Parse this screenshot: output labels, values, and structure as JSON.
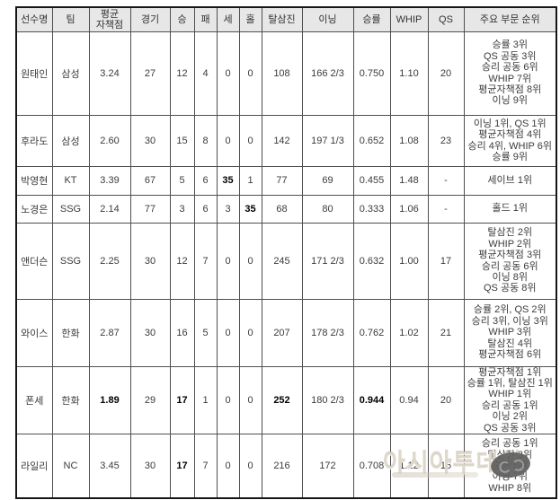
{
  "colors": {
    "header_bg": "#e7e7e7",
    "inner_border": "#4f4f4f",
    "outer_border": "#161616",
    "body_text": "#3b3b3b",
    "bold_text": "#000000",
    "watermark_text": "#d5cdbe",
    "watermark_logo": "#5e5e5e"
  },
  "table": {
    "columns": [
      {
        "key": "name",
        "label": "선수명"
      },
      {
        "key": "team",
        "label": "팀"
      },
      {
        "key": "era",
        "label": "평균\n자책점"
      },
      {
        "key": "games",
        "label": "경기"
      },
      {
        "key": "wins",
        "label": "승"
      },
      {
        "key": "losses",
        "label": "패"
      },
      {
        "key": "saves",
        "label": "세"
      },
      {
        "key": "holds",
        "label": "홀"
      },
      {
        "key": "strikeouts",
        "label": "탈삼진"
      },
      {
        "key": "innings",
        "label": "이닝"
      },
      {
        "key": "win_rate",
        "label": "승률"
      },
      {
        "key": "whip",
        "label": "WHIP"
      },
      {
        "key": "qs",
        "label": "QS"
      },
      {
        "key": "rankings",
        "label": "주요 부문 순위"
      }
    ],
    "rows": [
      {
        "name": "원태인",
        "team": "삼성",
        "era": "3.24",
        "games": "27",
        "wins": "12",
        "losses": "4",
        "saves": "0",
        "holds": "0",
        "strikeouts": "108",
        "innings": "166 2/3",
        "win_rate": "0.750",
        "whip": "1.10",
        "qs": "20",
        "bold": [],
        "rankings": [
          "승률 3위",
          "QS 공동 3위",
          "승리 공동 6위",
          "WHIP 7위",
          "평균자책점 8위",
          "이닝 9위"
        ]
      },
      {
        "name": "후라도",
        "team": "삼성",
        "era": "2.60",
        "games": "30",
        "wins": "15",
        "losses": "8",
        "saves": "0",
        "holds": "0",
        "strikeouts": "142",
        "innings": "197 1/3",
        "win_rate": "0.652",
        "whip": "1.08",
        "qs": "23",
        "bold": [],
        "rankings": [
          "이닝 1위, QS 1위",
          "평균자책점 4위",
          "승리 4위, WHIP 6위",
          "승률 9위"
        ]
      },
      {
        "name": "박영현",
        "team": "KT",
        "era": "3.39",
        "games": "67",
        "wins": "5",
        "losses": "6",
        "saves": "35",
        "holds": "1",
        "strikeouts": "77",
        "innings": "69",
        "win_rate": "0.455",
        "whip": "1.48",
        "qs": "-",
        "bold": [
          "saves"
        ],
        "rankings": [
          "세이브 1위"
        ]
      },
      {
        "name": "노경은",
        "team": "SSG",
        "era": "2.14",
        "games": "77",
        "wins": "3",
        "losses": "6",
        "saves": "3",
        "holds": "35",
        "strikeouts": "68",
        "innings": "80",
        "win_rate": "0.333",
        "whip": "1.06",
        "qs": "-",
        "bold": [
          "holds"
        ],
        "rankings": [
          "홀드 1위"
        ]
      },
      {
        "name": "앤더슨",
        "team": "SSG",
        "era": "2.25",
        "games": "30",
        "wins": "12",
        "losses": "7",
        "saves": "0",
        "holds": "0",
        "strikeouts": "245",
        "innings": "171 2/3",
        "win_rate": "0.632",
        "whip": "1.00",
        "qs": "17",
        "bold": [],
        "rankings": [
          "탈삼진 2위",
          "WHIP 2위",
          "평균자책점 3위",
          "승리 공동 6위",
          "이닝 8위",
          "QS 공동 8위"
        ]
      },
      {
        "name": "와이스",
        "team": "한화",
        "era": "2.87",
        "games": "30",
        "wins": "16",
        "losses": "5",
        "saves": "0",
        "holds": "0",
        "strikeouts": "207",
        "innings": "178 2/3",
        "win_rate": "0.762",
        "whip": "1.02",
        "qs": "21",
        "bold": [],
        "rankings": [
          "승률 2위, QS 2위",
          "승리 3위, 이닝 3위",
          "WHIP 3위",
          "탈삼진 4위",
          "평균자책점 6위"
        ]
      },
      {
        "name": "폰세",
        "team": "한화",
        "era": "1.89",
        "games": "29",
        "wins": "17",
        "losses": "1",
        "saves": "0",
        "holds": "0",
        "strikeouts": "252",
        "innings": "180 2/3",
        "win_rate": "0.944",
        "whip": "0.94",
        "qs": "20",
        "bold": [
          "era",
          "wins",
          "strikeouts",
          "win_rate"
        ],
        "rankings": [
          "평균자책점 1위",
          "승률 1위, 탈삼진 1위",
          "WHIP 1위",
          "승리 공동 1위",
          "이닝 2위",
          "QS 공동 3위"
        ]
      },
      {
        "name": "라일리",
        "team": "NC",
        "era": "3.45",
        "games": "30",
        "wins": "17",
        "losses": "7",
        "saves": "0",
        "holds": "0",
        "strikeouts": "216",
        "innings": "172",
        "win_rate": "0.708",
        "whip": "1.12",
        "qs": "16",
        "bold": [
          "wins"
        ],
        "rankings": [
          "승리 공동 1위",
          "탈삼진 3위",
          "승률 5위",
          "이닝 7위",
          "WHIP 8위"
        ]
      }
    ]
  },
  "watermark": {
    "text": "아시아투데이"
  }
}
